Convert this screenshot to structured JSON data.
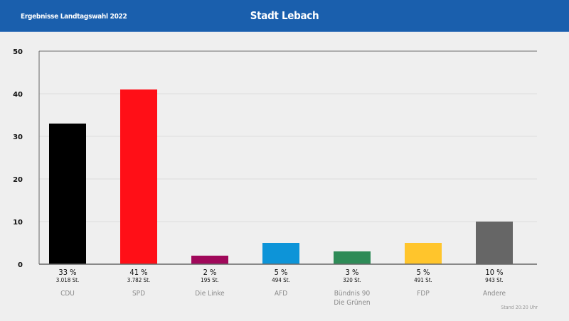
{
  "header": {
    "subtitle": "Ergebnisse Landtagswahl 2022",
    "title": "Stadt Lebach"
  },
  "footer": {
    "stand": "Stand 20:20 Uhr"
  },
  "chart_data": {
    "type": "bar",
    "title": "Stadt Lebach",
    "categories": [
      "CDU",
      "SPD",
      "Die Linke",
      "AFD",
      "Bündnis 90\nDie Grünen",
      "FDP",
      "Andere"
    ],
    "values": [
      33,
      41,
      2,
      5,
      3,
      5,
      10
    ],
    "percent_labels": [
      "33 %",
      "41 %",
      "2 %",
      "5 %",
      "3 %",
      "5 %",
      "10 %"
    ],
    "votes_labels": [
      "3.018 St.",
      "3.782 St.",
      "195 St.",
      "494 St.",
      "320 St.",
      "491 St.",
      "943 St."
    ],
    "colors": [
      "#000000",
      "#ff0f17",
      "#a0085a",
      "#0d94d8",
      "#2e8b57",
      "#ffc52c",
      "#666666"
    ],
    "ylim": [
      0,
      50
    ],
    "yticks": [
      0,
      10,
      20,
      30,
      40,
      50
    ],
    "grid": true
  }
}
